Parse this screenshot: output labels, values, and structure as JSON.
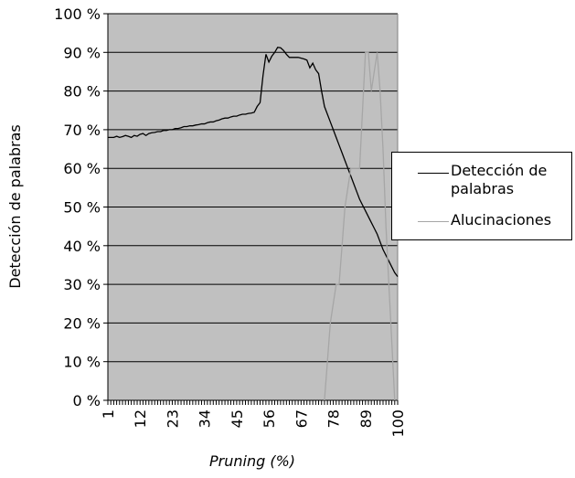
{
  "chart_data": {
    "type": "line",
    "x_label": "Pruning (%)",
    "y_label": "Detección de palabras",
    "categories": [
      "1",
      null,
      null,
      null,
      null,
      null,
      null,
      null,
      null,
      null,
      null,
      "12",
      null,
      null,
      null,
      null,
      null,
      null,
      null,
      null,
      null,
      null,
      "23",
      null,
      null,
      null,
      null,
      null,
      null,
      null,
      null,
      null,
      null,
      "34",
      null,
      null,
      null,
      null,
      null,
      null,
      null,
      null,
      null,
      null,
      "45",
      null,
      null,
      null,
      null,
      null,
      null,
      null,
      null,
      null,
      null,
      "56",
      null,
      null,
      null,
      null,
      null,
      null,
      null,
      null,
      null,
      null,
      "67",
      null,
      null,
      null,
      null,
      null,
      null,
      null,
      null,
      null,
      null,
      "78",
      null,
      null,
      null,
      null,
      null,
      null,
      null,
      null,
      null,
      null,
      "89",
      null,
      null,
      null,
      null,
      null,
      null,
      null,
      null,
      null,
      null,
      "100"
    ],
    "series": [
      {
        "name": "Detección de palabras",
        "color": "#000000",
        "values": [
          68,
          68,
          68,
          68.3,
          68,
          68.2,
          68.5,
          68.3,
          68,
          68.5,
          68.3,
          68.8,
          69,
          68.5,
          69,
          69.2,
          69.3,
          69.5,
          69.5,
          69.8,
          69.8,
          70,
          70,
          70.3,
          70.3,
          70.5,
          70.8,
          70.8,
          71,
          71,
          71.2,
          71.3,
          71.5,
          71.5,
          71.8,
          72,
          72,
          72.3,
          72.5,
          72.8,
          73,
          73,
          73.3,
          73.5,
          73.5,
          73.8,
          74,
          74,
          74.2,
          74.3,
          74.5,
          76,
          77,
          84,
          89.5,
          87.5,
          89,
          90,
          91.3,
          91.2,
          90.5,
          89.5,
          88.7,
          88.7,
          88.7,
          88.7,
          88.5,
          88.3,
          88,
          86,
          87.2,
          85.5,
          84.5,
          80,
          76,
          74,
          72,
          70,
          68,
          66,
          64,
          62,
          60,
          58,
          56,
          54,
          52,
          50.5,
          49,
          47.5,
          46,
          44.5,
          43,
          41,
          39,
          37.5,
          36,
          34.5,
          33,
          32
        ]
      },
      {
        "name": "Alucinaciones",
        "color": "#a6a6a6",
        "values": [
          null,
          null,
          null,
          null,
          null,
          null,
          null,
          null,
          null,
          null,
          null,
          null,
          null,
          null,
          null,
          null,
          null,
          null,
          null,
          null,
          null,
          null,
          null,
          null,
          null,
          null,
          null,
          null,
          null,
          null,
          null,
          null,
          null,
          null,
          null,
          null,
          null,
          null,
          null,
          null,
          null,
          null,
          null,
          null,
          null,
          null,
          null,
          null,
          null,
          null,
          null,
          null,
          null,
          null,
          null,
          null,
          null,
          null,
          null,
          null,
          null,
          null,
          null,
          null,
          null,
          null,
          null,
          null,
          null,
          null,
          null,
          null,
          null,
          null,
          0,
          10,
          20,
          25,
          30,
          30,
          40,
          50,
          55,
          60,
          60,
          60,
          60,
          75,
          90,
          90,
          80,
          85,
          90,
          80,
          65,
          45,
          30,
          15,
          0,
          null
        ]
      }
    ],
    "ylim": [
      0,
      100
    ],
    "yticks": [
      {
        "value": 0,
        "label": "0 %"
      },
      {
        "value": 10,
        "label": "10 %"
      },
      {
        "value": 20,
        "label": "20 %"
      },
      {
        "value": 30,
        "label": "30 %"
      },
      {
        "value": 40,
        "label": "40 %"
      },
      {
        "value": 50,
        "label": "50 %"
      },
      {
        "value": 60,
        "label": "60 %"
      },
      {
        "value": 70,
        "label": "70 %"
      },
      {
        "value": 80,
        "label": "80 %"
      },
      {
        "value": 90,
        "label": "90 %"
      },
      {
        "value": 100,
        "label": "100 %"
      }
    ],
    "grid": true,
    "background": "#c0c0c0"
  }
}
